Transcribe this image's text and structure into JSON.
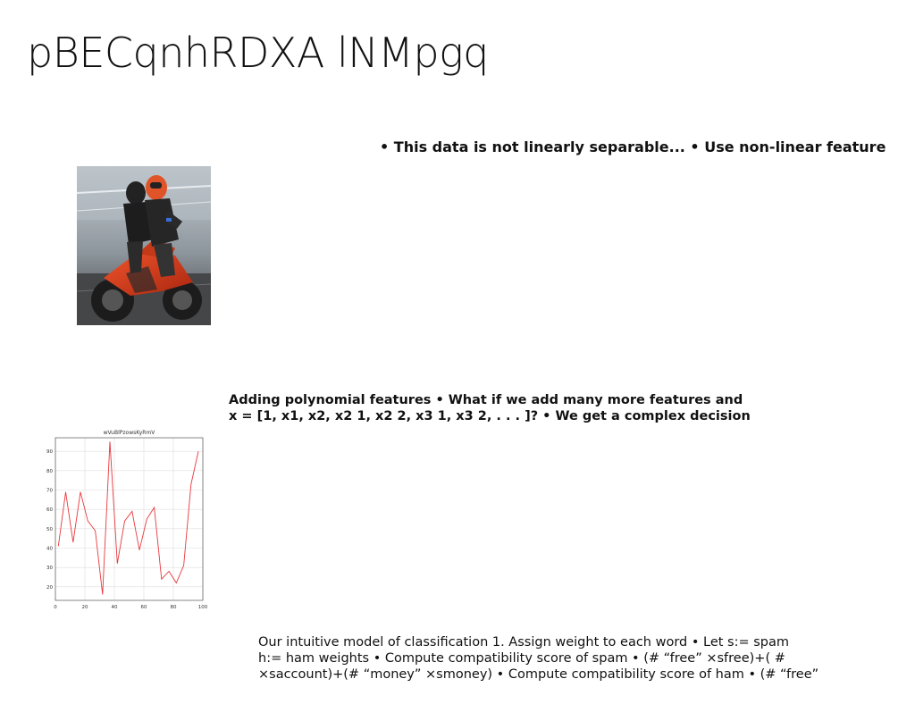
{
  "slide": {
    "title": "pBECqnhRDXA lNMpgq",
    "bullet_top": "• This data is not linearly separable... • Use non-linear feature",
    "poly_lines": [
      "Adding polynomial features • What if we add many more features and",
      "x = [1, x1, x2, x2 1, x2 2, x3 1, x3 2, . . . ]? • We get a complex decision"
    ],
    "bottom_lines": [
      "Our intuitive model of classification 1. Assign weight to each word • Let s:= spam",
      "h:= ham weights • Compute compatibility score of spam • (# “free” ×sfree)+( #",
      "×saccount)+(# “money” ×smoney) • Compute compatibility score of ham • (# “free”"
    ]
  },
  "photo": {
    "subject": "motorcycle-riders-photo"
  },
  "chart_data": {
    "type": "line",
    "title": "wVuBlPzowsKyRmV",
    "xlabel": "",
    "ylabel": "",
    "xlim": [
      0,
      100
    ],
    "ylim": [
      13,
      97
    ],
    "xticks": [
      0,
      20,
      40,
      60,
      80,
      100
    ],
    "yticks": [
      20,
      30,
      40,
      50,
      60,
      70,
      80,
      90
    ],
    "grid": true,
    "color": "#e8383d",
    "x": [
      2,
      7,
      12,
      17,
      22,
      27,
      32,
      37,
      42,
      47,
      52,
      57,
      62,
      67,
      72,
      77,
      82,
      87,
      92,
      97,
      102
    ],
    "y": [
      41,
      69,
      43,
      69,
      54,
      49,
      16,
      95,
      32,
      54,
      59,
      39,
      55,
      61,
      24,
      28,
      22,
      31,
      73,
      90,
      90
    ],
    "series": [
      {
        "x": [
          2,
          7,
          12,
          17,
          22,
          27,
          32,
          37,
          42,
          47,
          52,
          57,
          62,
          67,
          72,
          77,
          82,
          87,
          92,
          97
        ],
        "values": [
          41,
          69,
          43,
          69,
          54,
          49,
          16,
          95,
          32,
          54,
          59,
          39,
          55,
          61,
          24,
          28,
          22,
          31,
          73,
          90
        ]
      }
    ]
  }
}
